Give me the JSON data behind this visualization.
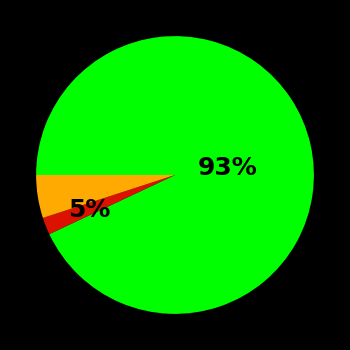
{
  "slices": [
    93,
    2,
    5
  ],
  "colors": [
    "#00ff00",
    "#dd1100",
    "#ffaa00"
  ],
  "labels": [
    "93%",
    "",
    "5%"
  ],
  "background_color": "#000000",
  "label_fontsize": 18,
  "label_fontweight": "bold",
  "startangle": 180,
  "figsize": [
    3.5,
    3.5
  ],
  "dpi": 100,
  "label_positions": {
    "green": [
      0.38,
      0.05
    ],
    "yellow": [
      -0.62,
      -0.25
    ]
  }
}
